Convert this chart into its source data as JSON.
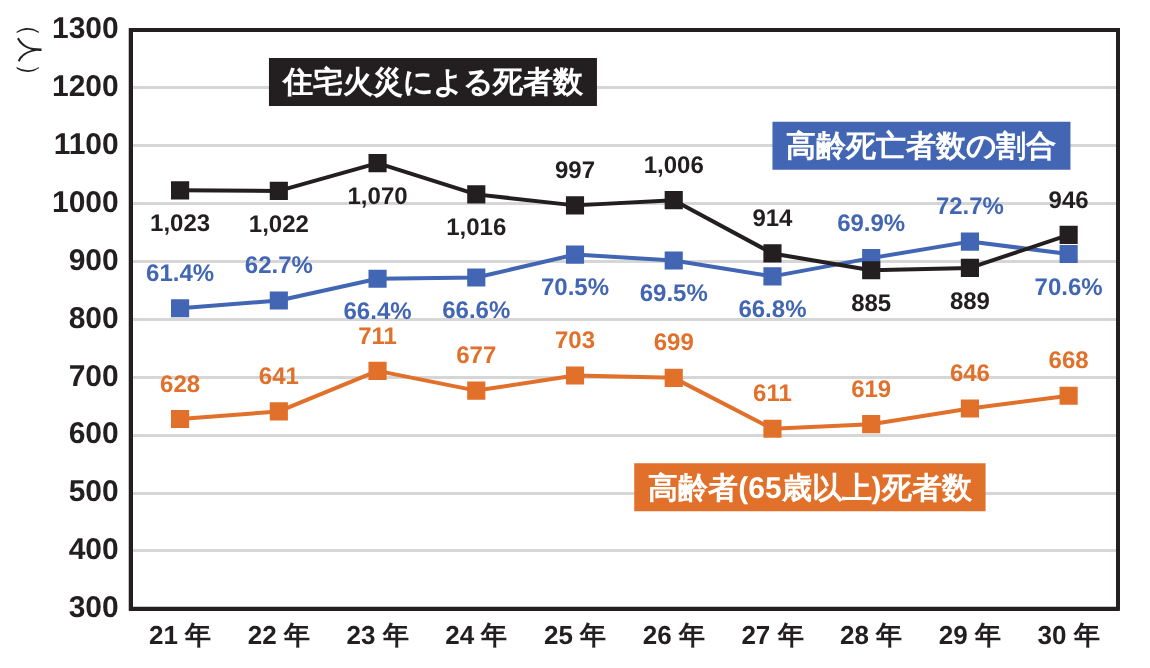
{
  "chart_data": {
    "type": "line",
    "ylabel": "（人）",
    "categories": [
      "21 年",
      "22 年",
      "23 年",
      "24 年",
      "25 年",
      "26 年",
      "27 年",
      "28 年",
      "29 年",
      "30 年"
    ],
    "series": [
      {
        "name": "住宅火災による死者数",
        "color": "#231f20",
        "values": [
          1023,
          1022,
          1070,
          1016,
          997,
          1006,
          914,
          885,
          889,
          946
        ],
        "value_labels": [
          "1,023",
          "1,022",
          "1,070",
          "1,016",
          "997",
          "1,006",
          "914",
          "885",
          "889",
          "946"
        ]
      },
      {
        "name": "高齢死亡者数の割合",
        "color": "#4266b3",
        "axis": "y2",
        "values": [
          61.4,
          62.7,
          66.4,
          66.6,
          70.5,
          69.5,
          66.8,
          69.9,
          72.7,
          70.6
        ],
        "value_labels": [
          "61.4%",
          "62.7%",
          "66.4%",
          "66.6%",
          "70.5%",
          "69.5%",
          "66.8%",
          "69.9%",
          "72.7%",
          "70.6%"
        ]
      },
      {
        "name": "高齢者(65歳以上)死者数",
        "color": "#e0702a",
        "values": [
          628,
          641,
          711,
          677,
          703,
          699,
          611,
          619,
          646,
          668
        ],
        "value_labels": [
          "628",
          "641",
          "711",
          "677",
          "703",
          "699",
          "611",
          "619",
          "646",
          "668"
        ]
      }
    ],
    "ylim": [
      300,
      1300
    ],
    "yticks": [
      300,
      400,
      500,
      600,
      700,
      800,
      900,
      1000,
      1100,
      1200,
      1300
    ],
    "y2lim": [
      10.4,
      108.6
    ],
    "grid": "y",
    "legend": false,
    "marker": "square",
    "line_style": "solid"
  }
}
